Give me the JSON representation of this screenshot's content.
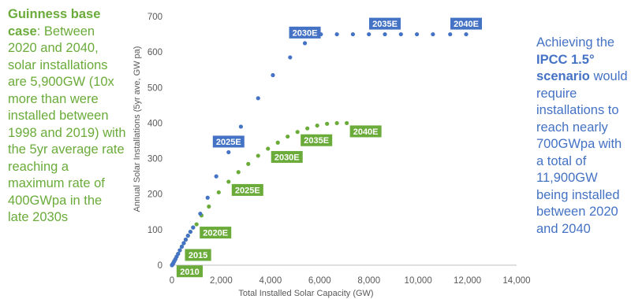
{
  "colors": {
    "green": "#6aab3a",
    "blue": "#4472c4",
    "axis": "#bfbfbf",
    "text": "#595959"
  },
  "left_note": {
    "bold": "Guinness base case",
    "text": ": Between 2020 and 2040, solar installations are 5,900GW (10x more than were installed between 1998 and 2019) with the 5yr average rate reaching a maximum rate of 400GWpa in the late 2030s"
  },
  "right_note": {
    "pre": "Achieving the ",
    "bold": "IPCC 1.5° scenario",
    "post": " would require installations to reach nearly 700GWpa with a total of 11,900GW being installed between 2020 and 2040"
  },
  "chart_data": {
    "type": "scatter",
    "xlabel": "Total Installed Solar Capacity (GW)",
    "ylabel": "Annual Solar Installations (5yr ave, GW pa)",
    "xlim": [
      0,
      14000
    ],
    "ylim": [
      0,
      700
    ],
    "x_ticks": [
      "0",
      "2,000",
      "4,000",
      "6,000",
      "8,000",
      "10,000",
      "12,000",
      "14,000"
    ],
    "y_ticks": [
      "0",
      "100",
      "200",
      "300",
      "400",
      "500",
      "600",
      "700"
    ],
    "series": [
      {
        "color": "#6aab3a",
        "points": [
          [
            0,
            0
          ],
          [
            20,
            2
          ],
          [
            40,
            4
          ],
          [
            70,
            8
          ],
          [
            100,
            12
          ],
          [
            140,
            17
          ],
          [
            190,
            24
          ],
          [
            250,
            32
          ],
          [
            320,
            42
          ],
          [
            400,
            52
          ],
          [
            480,
            62
          ],
          [
            560,
            72
          ],
          [
            650,
            83
          ],
          [
            750,
            94
          ],
          [
            860,
            106
          ],
          [
            1000,
            115
          ],
          [
            1200,
            140
          ],
          [
            1500,
            165
          ],
          [
            1900,
            205
          ],
          [
            2300,
            235
          ],
          [
            2700,
            262
          ],
          [
            3100,
            285
          ],
          [
            3500,
            308
          ],
          [
            3900,
            328
          ],
          [
            4300,
            345
          ],
          [
            4700,
            362
          ],
          [
            5100,
            375
          ],
          [
            5500,
            385
          ],
          [
            5900,
            393
          ],
          [
            6300,
            398
          ],
          [
            6700,
            400
          ],
          [
            7100,
            400
          ]
        ],
        "labels": [
          {
            "text": "2010",
            "x": 60,
            "y": 6
          },
          {
            "text": "2015",
            "x": 400,
            "y": 52
          },
          {
            "text": "2020E",
            "x": 1000,
            "y": 115
          },
          {
            "text": "2025E",
            "x": 2300,
            "y": 235
          },
          {
            "text": "2030E",
            "x": 3900,
            "y": 328
          },
          {
            "text": "2035E",
            "x": 5100,
            "y": 375
          },
          {
            "text": "2040E",
            "x": 7100,
            "y": 400
          }
        ]
      },
      {
        "color": "#4472c4",
        "points": [
          [
            0,
            0
          ],
          [
            20,
            2
          ],
          [
            40,
            4
          ],
          [
            70,
            8
          ],
          [
            100,
            12
          ],
          [
            140,
            17
          ],
          [
            190,
            24
          ],
          [
            250,
            32
          ],
          [
            320,
            42
          ],
          [
            400,
            52
          ],
          [
            480,
            62
          ],
          [
            560,
            72
          ],
          [
            650,
            83
          ],
          [
            750,
            94
          ],
          [
            860,
            106
          ],
          [
            1150,
            145
          ],
          [
            1450,
            190
          ],
          [
            1800,
            250
          ],
          [
            2300,
            318
          ],
          [
            2800,
            390
          ],
          [
            3500,
            470
          ],
          [
            4100,
            535
          ],
          [
            4800,
            585
          ],
          [
            5400,
            625
          ],
          [
            6050,
            650
          ],
          [
            6700,
            650
          ],
          [
            7350,
            650
          ],
          [
            8000,
            650
          ],
          [
            8650,
            650
          ],
          [
            9300,
            650
          ],
          [
            9950,
            650
          ],
          [
            10600,
            650
          ],
          [
            11300,
            650
          ],
          [
            11950,
            650
          ]
        ],
        "labels": [
          {
            "text": "2025E",
            "x": 2300,
            "y": 318
          },
          {
            "text": "2030E",
            "x": 5400,
            "y": 625
          },
          {
            "text": "2035E",
            "x": 8650,
            "y": 650
          },
          {
            "text": "2040E",
            "x": 11950,
            "y": 650
          }
        ]
      }
    ]
  }
}
